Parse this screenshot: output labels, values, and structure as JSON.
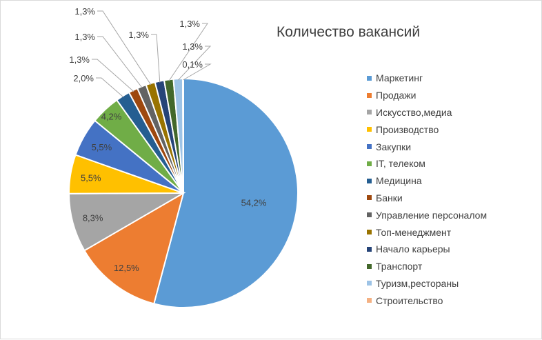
{
  "chart_data": {
    "type": "pie",
    "title": "Количество вакансий",
    "legend_position": "right",
    "categories": [
      "Маркетинг",
      "Продажи",
      "Искусство,медиа",
      "Производство",
      "Закупки",
      "IT, телеком",
      "Медицина",
      "Банки",
      "Управление персоналом",
      "Топ-менеджмент",
      "Начало карьеры",
      "Транспорт",
      "Туризм,рестораны",
      "Строительство"
    ],
    "values": [
      54.2,
      12.5,
      8.3,
      5.5,
      5.5,
      4.2,
      2.0,
      1.3,
      1.3,
      1.3,
      1.3,
      1.3,
      1.3,
      0.1
    ],
    "labels": [
      "54,2%",
      "12,5%",
      "8,3%",
      "5,5%",
      "5,5%",
      "4,2%",
      "2,0%",
      "1,3%",
      "1,3%",
      "1,3%",
      "1,3%",
      "1,3%",
      "1,3%",
      "0,1%"
    ],
    "colors": [
      "#5b9bd5",
      "#ed7d31",
      "#a5a5a5",
      "#ffc000",
      "#4472c4",
      "#70ad47",
      "#255e91",
      "#9e480e",
      "#636363",
      "#997300",
      "#264478",
      "#43682b",
      "#9dc3e6",
      "#f4b183"
    ]
  }
}
